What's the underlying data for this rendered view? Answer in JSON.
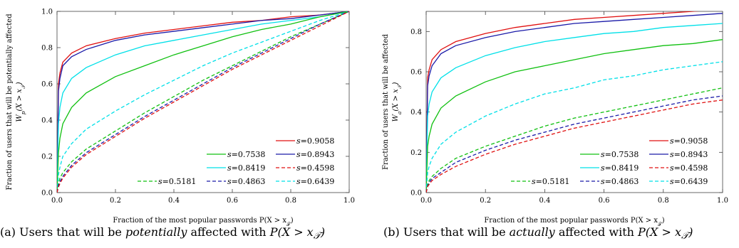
{
  "chart_data": [
    {
      "type": "line",
      "id": "a",
      "ylabel_line1": "Fraction of users that will be potentially affected",
      "ylabel_line2": "W_p(X > x_T)",
      "xlabel": "Fraction of the most popular passwords P(X > x_T)",
      "xlim": [
        0,
        1
      ],
      "ylim": [
        0,
        1
      ],
      "xticks": [
        "0.0",
        "0.2",
        "0.4",
        "0.6",
        "0.8",
        "1.0"
      ],
      "yticks": [
        "0.0",
        "0.2",
        "0.4",
        "0.6",
        "0.8",
        "1.0"
      ],
      "x": [
        0,
        0.005,
        0.01,
        0.02,
        0.05,
        0.1,
        0.2,
        0.3,
        0.4,
        0.5,
        0.6,
        0.7,
        0.8,
        0.9,
        1.0
      ],
      "series": [
        {
          "name": "s=0.9058",
          "color": "#e01010",
          "dash": false,
          "values": [
            0,
            0.6,
            0.66,
            0.72,
            0.77,
            0.81,
            0.85,
            0.88,
            0.9,
            0.92,
            0.94,
            0.95,
            0.97,
            0.98,
            1.0
          ]
        },
        {
          "name": "s=0.8943",
          "color": "#1a1aa8",
          "dash": false,
          "values": [
            0,
            0.56,
            0.63,
            0.7,
            0.75,
            0.79,
            0.84,
            0.87,
            0.89,
            0.91,
            0.93,
            0.95,
            0.96,
            0.98,
            1.0
          ]
        },
        {
          "name": "s=0.8419",
          "color": "#00e0e8",
          "dash": false,
          "values": [
            0,
            0.38,
            0.47,
            0.55,
            0.63,
            0.69,
            0.76,
            0.81,
            0.84,
            0.87,
            0.9,
            0.93,
            0.95,
            0.97,
            1.0
          ]
        },
        {
          "name": "s=0.7538",
          "color": "#10c010",
          "dash": false,
          "values": [
            0,
            0.22,
            0.3,
            0.38,
            0.47,
            0.55,
            0.64,
            0.7,
            0.76,
            0.81,
            0.86,
            0.9,
            0.93,
            0.97,
            1.0
          ]
        },
        {
          "name": "s=0.6439",
          "color": "#00e0e8",
          "dash": true,
          "values": [
            0,
            0.1,
            0.14,
            0.2,
            0.27,
            0.35,
            0.45,
            0.54,
            0.62,
            0.7,
            0.77,
            0.83,
            0.89,
            0.95,
            1.0
          ]
        },
        {
          "name": "s=0.5181",
          "color": "#10c010",
          "dash": true,
          "values": [
            0,
            0.05,
            0.08,
            0.11,
            0.17,
            0.24,
            0.34,
            0.44,
            0.53,
            0.62,
            0.7,
            0.78,
            0.86,
            0.93,
            1.0
          ]
        },
        {
          "name": "s=0.4863",
          "color": "#1a1aa8",
          "dash": true,
          "values": [
            0,
            0.04,
            0.06,
            0.09,
            0.15,
            0.22,
            0.32,
            0.42,
            0.51,
            0.6,
            0.69,
            0.77,
            0.85,
            0.93,
            1.0
          ]
        },
        {
          "name": "s=0.4598",
          "color": "#e01010",
          "dash": true,
          "values": [
            0,
            0.03,
            0.05,
            0.08,
            0.14,
            0.21,
            0.31,
            0.41,
            0.5,
            0.59,
            0.68,
            0.76,
            0.84,
            0.92,
            1.0
          ]
        }
      ],
      "legend_position": "bottom-right",
      "legend_rows": [
        [
          "s=0.9058"
        ],
        [
          "s=0.7538",
          "s=0.8943"
        ],
        [
          "s=0.8419",
          "s=0.4598"
        ],
        [
          "s=0.5181",
          "s=0.4863",
          "s=0.6439"
        ]
      ]
    },
    {
      "type": "line",
      "id": "b",
      "ylabel_line1": "Fraction of users that will be affected",
      "ylabel_line2": "W_a(X > x_T)",
      "xlabel": "Fraction of the most popular passwords P(X > x_T)",
      "xlim": [
        0,
        1
      ],
      "ylim": [
        0,
        0.9
      ],
      "xticks": [
        "0.0",
        "0.2",
        "0.4",
        "0.6",
        "0.8",
        "1.0"
      ],
      "yticks": [
        "0.0",
        "0.2",
        "0.4",
        "0.6",
        "0.8"
      ],
      "x": [
        0,
        0.005,
        0.01,
        0.02,
        0.05,
        0.1,
        0.2,
        0.3,
        0.4,
        0.5,
        0.6,
        0.7,
        0.8,
        0.9,
        1.0
      ],
      "series": [
        {
          "name": "s=0.9058",
          "color": "#e01010",
          "dash": false,
          "values": [
            0,
            0.57,
            0.61,
            0.66,
            0.71,
            0.75,
            0.79,
            0.82,
            0.84,
            0.86,
            0.87,
            0.88,
            0.89,
            0.9,
            0.91
          ]
        },
        {
          "name": "s=0.8943",
          "color": "#1a1aa8",
          "dash": false,
          "values": [
            0,
            0.53,
            0.58,
            0.63,
            0.69,
            0.73,
            0.77,
            0.8,
            0.82,
            0.84,
            0.85,
            0.86,
            0.87,
            0.88,
            0.89
          ]
        },
        {
          "name": "s=0.8419",
          "color": "#00e0e8",
          "dash": false,
          "values": [
            0,
            0.38,
            0.44,
            0.5,
            0.57,
            0.62,
            0.68,
            0.72,
            0.75,
            0.77,
            0.79,
            0.8,
            0.82,
            0.83,
            0.84
          ]
        },
        {
          "name": "s=0.7538",
          "color": "#10c010",
          "dash": false,
          "values": [
            0,
            0.23,
            0.28,
            0.34,
            0.42,
            0.48,
            0.55,
            0.6,
            0.63,
            0.66,
            0.69,
            0.71,
            0.73,
            0.74,
            0.76
          ]
        },
        {
          "name": "s=0.6439",
          "color": "#00e0e8",
          "dash": true,
          "values": [
            0,
            0.1,
            0.13,
            0.17,
            0.24,
            0.3,
            0.38,
            0.44,
            0.49,
            0.52,
            0.56,
            0.58,
            0.61,
            0.63,
            0.65
          ]
        },
        {
          "name": "s=0.5181",
          "color": "#10c010",
          "dash": true,
          "values": [
            0,
            0.04,
            0.06,
            0.08,
            0.12,
            0.17,
            0.23,
            0.28,
            0.33,
            0.37,
            0.4,
            0.43,
            0.46,
            0.49,
            0.52
          ]
        },
        {
          "name": "s=0.4863",
          "color": "#1a1aa8",
          "dash": true,
          "values": [
            0,
            0.03,
            0.05,
            0.07,
            0.1,
            0.15,
            0.21,
            0.26,
            0.3,
            0.34,
            0.37,
            0.4,
            0.43,
            0.46,
            0.48
          ]
        },
        {
          "name": "s=0.4598",
          "color": "#e01010",
          "dash": true,
          "values": [
            0,
            0.03,
            0.04,
            0.06,
            0.09,
            0.13,
            0.19,
            0.24,
            0.28,
            0.32,
            0.35,
            0.38,
            0.41,
            0.44,
            0.46
          ]
        }
      ],
      "legend_position": "bottom-right",
      "legend_rows": [
        [
          "s=0.9058"
        ],
        [
          "s=0.7538",
          "s=0.8943"
        ],
        [
          "s=0.8419",
          "s=0.4598"
        ],
        [
          "s=0.5181",
          "s=0.4863",
          "s=0.6439"
        ]
      ]
    }
  ],
  "captions": {
    "a_label": "(a)",
    "a_pre": "Users that will be",
    "a_em": "potentially",
    "a_post": "affected with",
    "a_math": "P(X > x_T)",
    "b_label": "(b)",
    "b_pre": "Users that will be",
    "b_em": "actually",
    "b_post": "affected with",
    "b_math": "P(X > x_T)"
  }
}
